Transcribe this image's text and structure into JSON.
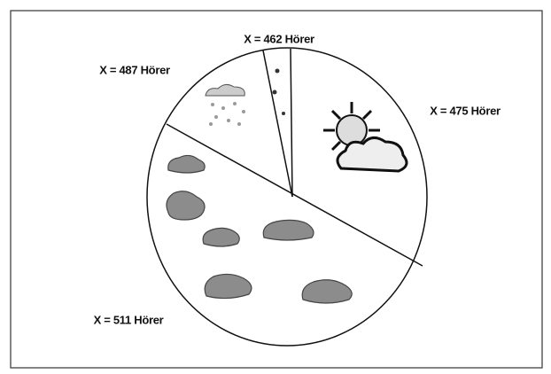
{
  "labels": [
    "X = 462 Hörer",
    "X = 487 Hörer",
    "X = 475 Hörer",
    "X = 511 Hörer"
  ]
}
